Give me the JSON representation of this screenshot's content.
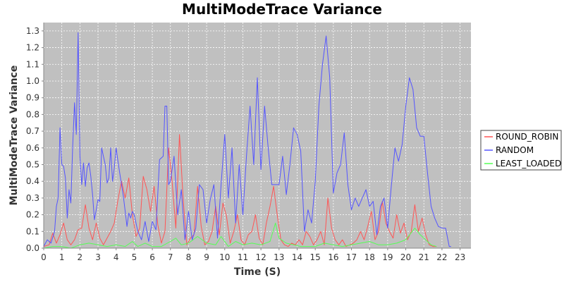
{
  "chart_data": {
    "type": "line",
    "title": "MultiModeTrace Variance",
    "xlabel": "Time (S)",
    "ylabel": "MultiModeTrace Variance",
    "xlim": [
      0,
      23.6
    ],
    "ylim": [
      0,
      1.35
    ],
    "x_ticks": [
      "0",
      "1",
      "2",
      "3",
      "4",
      "5",
      "6",
      "7",
      "8",
      "9",
      "10",
      "11",
      "12",
      "13",
      "14",
      "15",
      "16",
      "17",
      "18",
      "19",
      "20",
      "21",
      "22",
      "23"
    ],
    "y_ticks": [
      "0.0",
      "0.1",
      "0.2",
      "0.3",
      "0.4",
      "0.5",
      "0.6",
      "0.7",
      "0.8",
      "0.9",
      "1.0",
      "1.1",
      "1.2",
      "1.3"
    ],
    "grid": true,
    "legend_position": "right",
    "plot_background": "#c0c0c0",
    "series": [
      {
        "name": "ROUND_ROBIN",
        "color": "#ff5555",
        "points": [
          [
            0,
            0.01
          ],
          [
            0.3,
            0.02
          ],
          [
            0.5,
            0.09
          ],
          [
            0.7,
            0.03
          ],
          [
            0.9,
            0.08
          ],
          [
            1.1,
            0.15
          ],
          [
            1.3,
            0.05
          ],
          [
            1.5,
            0.02
          ],
          [
            1.7,
            0.05
          ],
          [
            1.9,
            0.11
          ],
          [
            2.1,
            0.12
          ],
          [
            2.3,
            0.26
          ],
          [
            2.5,
            0.12
          ],
          [
            2.7,
            0.05
          ],
          [
            2.9,
            0.15
          ],
          [
            3.1,
            0.06
          ],
          [
            3.3,
            0.02
          ],
          [
            3.5,
            0.06
          ],
          [
            3.7,
            0.1
          ],
          [
            3.9,
            0.15
          ],
          [
            4.1,
            0.29
          ],
          [
            4.3,
            0.4
          ],
          [
            4.5,
            0.3
          ],
          [
            4.7,
            0.42
          ],
          [
            4.9,
            0.2
          ],
          [
            5.1,
            0.07
          ],
          [
            5.3,
            0.12
          ],
          [
            5.5,
            0.43
          ],
          [
            5.7,
            0.35
          ],
          [
            5.9,
            0.22
          ],
          [
            6.1,
            0.37
          ],
          [
            6.3,
            0.14
          ],
          [
            6.5,
            0.03
          ],
          [
            6.7,
            0.1
          ],
          [
            6.9,
            0.6
          ],
          [
            7.1,
            0.39
          ],
          [
            7.3,
            0.12
          ],
          [
            7.5,
            0.68
          ],
          [
            7.7,
            0.3
          ],
          [
            7.9,
            0.02
          ],
          [
            8.1,
            0.06
          ],
          [
            8.3,
            0.08
          ],
          [
            8.5,
            0.37
          ],
          [
            8.7,
            0.13
          ],
          [
            8.9,
            0.02
          ],
          [
            9.1,
            0.04
          ],
          [
            9.3,
            0.1
          ],
          [
            9.5,
            0.25
          ],
          [
            9.7,
            0.08
          ],
          [
            9.9,
            0.27
          ],
          [
            10.1,
            0.19
          ],
          [
            10.3,
            0.03
          ],
          [
            10.5,
            0.1
          ],
          [
            10.7,
            0.2
          ],
          [
            10.9,
            0.05
          ],
          [
            11.1,
            0.02
          ],
          [
            11.3,
            0.08
          ],
          [
            11.5,
            0.1
          ],
          [
            11.7,
            0.2
          ],
          [
            11.9,
            0.06
          ],
          [
            12.1,
            0.02
          ],
          [
            12.3,
            0.15
          ],
          [
            12.5,
            0.25
          ],
          [
            12.7,
            0.37
          ],
          [
            12.9,
            0.2
          ],
          [
            13.1,
            0.05
          ],
          [
            13.3,
            0.02
          ],
          [
            13.5,
            0.01
          ],
          [
            13.7,
            0.03
          ],
          [
            13.9,
            0.02
          ],
          [
            14.1,
            0.05
          ],
          [
            14.3,
            0.02
          ],
          [
            14.5,
            0.1
          ],
          [
            14.7,
            0.07
          ],
          [
            14.9,
            0.02
          ],
          [
            15.1,
            0.05
          ],
          [
            15.3,
            0.1
          ],
          [
            15.5,
            0.02
          ],
          [
            15.7,
            0.3
          ],
          [
            15.9,
            0.12
          ],
          [
            16.1,
            0.05
          ],
          [
            16.3,
            0.02
          ],
          [
            16.5,
            0.05
          ],
          [
            16.7,
            0.01
          ],
          [
            16.9,
            0.02
          ],
          [
            17.1,
            0.03
          ],
          [
            17.3,
            0.05
          ],
          [
            17.5,
            0.1
          ],
          [
            17.7,
            0.05
          ],
          [
            17.9,
            0.13
          ],
          [
            18.1,
            0.22
          ],
          [
            18.3,
            0.05
          ],
          [
            18.5,
            0.1
          ],
          [
            18.7,
            0.28
          ],
          [
            18.9,
            0.15
          ],
          [
            19.1,
            0.1
          ],
          [
            19.3,
            0.06
          ],
          [
            19.5,
            0.2
          ],
          [
            19.7,
            0.09
          ],
          [
            19.9,
            0.15
          ],
          [
            20.1,
            0.05
          ],
          [
            20.3,
            0.1
          ],
          [
            20.5,
            0.26
          ],
          [
            20.7,
            0.1
          ],
          [
            20.9,
            0.18
          ],
          [
            21.1,
            0.08
          ],
          [
            21.3,
            0.02
          ],
          [
            21.5,
            0.01
          ],
          [
            21.7,
            0.01
          ]
        ]
      },
      {
        "name": "RANDOM",
        "color": "#5555ff",
        "points": [
          [
            0,
            0.01
          ],
          [
            0.2,
            0.05
          ],
          [
            0.4,
            0.03
          ],
          [
            0.6,
            0.1
          ],
          [
            0.7,
            0.25
          ],
          [
            0.8,
            0.3
          ],
          [
            0.9,
            0.72
          ],
          [
            1.0,
            0.5
          ],
          [
            1.1,
            0.49
          ],
          [
            1.2,
            0.42
          ],
          [
            1.3,
            0.18
          ],
          [
            1.4,
            0.35
          ],
          [
            1.5,
            0.27
          ],
          [
            1.6,
            0.61
          ],
          [
            1.7,
            0.87
          ],
          [
            1.8,
            0.68
          ],
          [
            1.9,
            1.29
          ],
          [
            2.0,
            0.55
          ],
          [
            2.1,
            0.38
          ],
          [
            2.2,
            0.51
          ],
          [
            2.3,
            0.37
          ],
          [
            2.4,
            0.48
          ],
          [
            2.5,
            0.51
          ],
          [
            2.6,
            0.43
          ],
          [
            2.7,
            0.32
          ],
          [
            2.8,
            0.17
          ],
          [
            2.9,
            0.23
          ],
          [
            3.0,
            0.29
          ],
          [
            3.1,
            0.28
          ],
          [
            3.2,
            0.6
          ],
          [
            3.3,
            0.55
          ],
          [
            3.4,
            0.5
          ],
          [
            3.5,
            0.39
          ],
          [
            3.6,
            0.42
          ],
          [
            3.7,
            0.6
          ],
          [
            3.8,
            0.4
          ],
          [
            3.9,
            0.48
          ],
          [
            4.0,
            0.6
          ],
          [
            4.1,
            0.52
          ],
          [
            4.2,
            0.45
          ],
          [
            4.3,
            0.38
          ],
          [
            4.4,
            0.31
          ],
          [
            4.5,
            0.22
          ],
          [
            4.6,
            0.13
          ],
          [
            4.7,
            0.21
          ],
          [
            4.8,
            0.18
          ],
          [
            4.9,
            0.22
          ],
          [
            5.0,
            0.2
          ],
          [
            5.2,
            0.1
          ],
          [
            5.4,
            0.05
          ],
          [
            5.6,
            0.16
          ],
          [
            5.8,
            0.04
          ],
          [
            6.0,
            0.16
          ],
          [
            6.2,
            0.11
          ],
          [
            6.4,
            0.53
          ],
          [
            6.6,
            0.55
          ],
          [
            6.7,
            0.85
          ],
          [
            6.8,
            0.85
          ],
          [
            6.9,
            0.38
          ],
          [
            7.0,
            0.4
          ],
          [
            7.2,
            0.55
          ],
          [
            7.4,
            0.2
          ],
          [
            7.6,
            0.35
          ],
          [
            7.8,
            0.05
          ],
          [
            8.0,
            0.22
          ],
          [
            8.2,
            0.05
          ],
          [
            8.4,
            0.12
          ],
          [
            8.6,
            0.38
          ],
          [
            8.8,
            0.35
          ],
          [
            9.0,
            0.15
          ],
          [
            9.2,
            0.29
          ],
          [
            9.4,
            0.38
          ],
          [
            9.6,
            0.06
          ],
          [
            9.8,
            0.38
          ],
          [
            10.0,
            0.68
          ],
          [
            10.2,
            0.3
          ],
          [
            10.4,
            0.6
          ],
          [
            10.6,
            0.15
          ],
          [
            10.8,
            0.5
          ],
          [
            11.0,
            0.2
          ],
          [
            11.2,
            0.55
          ],
          [
            11.4,
            0.85
          ],
          [
            11.6,
            0.5
          ],
          [
            11.8,
            1.02
          ],
          [
            12.0,
            0.47
          ],
          [
            12.2,
            0.85
          ],
          [
            12.4,
            0.6
          ],
          [
            12.6,
            0.38
          ],
          [
            12.8,
            0.38
          ],
          [
            13.0,
            0.38
          ],
          [
            13.2,
            0.55
          ],
          [
            13.4,
            0.32
          ],
          [
            13.6,
            0.5
          ],
          [
            13.8,
            0.72
          ],
          [
            14.0,
            0.68
          ],
          [
            14.2,
            0.58
          ],
          [
            14.4,
            0.1
          ],
          [
            14.6,
            0.23
          ],
          [
            14.8,
            0.15
          ],
          [
            15.0,
            0.4
          ],
          [
            15.2,
            0.85
          ],
          [
            15.4,
            1.1
          ],
          [
            15.6,
            1.27
          ],
          [
            15.8,
            1.02
          ],
          [
            16.0,
            0.33
          ],
          [
            16.2,
            0.45
          ],
          [
            16.4,
            0.5
          ],
          [
            16.6,
            0.69
          ],
          [
            16.8,
            0.38
          ],
          [
            17.0,
            0.23
          ],
          [
            17.2,
            0.3
          ],
          [
            17.4,
            0.25
          ],
          [
            17.6,
            0.3
          ],
          [
            17.8,
            0.35
          ],
          [
            18.0,
            0.25
          ],
          [
            18.2,
            0.28
          ],
          [
            18.4,
            0.08
          ],
          [
            18.6,
            0.25
          ],
          [
            18.8,
            0.3
          ],
          [
            19.0,
            0.12
          ],
          [
            19.2,
            0.37
          ],
          [
            19.4,
            0.6
          ],
          [
            19.6,
            0.52
          ],
          [
            19.8,
            0.62
          ],
          [
            20.0,
            0.85
          ],
          [
            20.2,
            1.02
          ],
          [
            20.4,
            0.95
          ],
          [
            20.6,
            0.72
          ],
          [
            20.8,
            0.67
          ],
          [
            21.0,
            0.67
          ],
          [
            21.2,
            0.45
          ],
          [
            21.4,
            0.25
          ],
          [
            21.6,
            0.18
          ],
          [
            21.8,
            0.13
          ],
          [
            22.0,
            0.12
          ],
          [
            22.2,
            0.12
          ],
          [
            22.4,
            0.01
          ],
          [
            22.5,
            0.01
          ]
        ]
      },
      {
        "name": "LEAST_LOADED",
        "color": "#55ff55",
        "points": [
          [
            0,
            0.0
          ],
          [
            0.5,
            0.01
          ],
          [
            1.0,
            0.01
          ],
          [
            1.5,
            0.0
          ],
          [
            2.0,
            0.02
          ],
          [
            2.5,
            0.03
          ],
          [
            3.0,
            0.02
          ],
          [
            3.5,
            0.01
          ],
          [
            4.0,
            0.02
          ],
          [
            4.5,
            0.01
          ],
          [
            4.9,
            0.04
          ],
          [
            5.2,
            0.01
          ],
          [
            5.6,
            0.03
          ],
          [
            6.0,
            0.01
          ],
          [
            6.5,
            0.01
          ],
          [
            7.0,
            0.04
          ],
          [
            7.3,
            0.06
          ],
          [
            7.6,
            0.02
          ],
          [
            8.0,
            0.03
          ],
          [
            8.5,
            0.07
          ],
          [
            9.0,
            0.03
          ],
          [
            9.5,
            0.02
          ],
          [
            9.8,
            0.07
          ],
          [
            10.2,
            0.01
          ],
          [
            10.6,
            0.04
          ],
          [
            11.0,
            0.02
          ],
          [
            11.5,
            0.03
          ],
          [
            12.0,
            0.02
          ],
          [
            12.5,
            0.04
          ],
          [
            12.8,
            0.15
          ],
          [
            13.0,
            0.06
          ],
          [
            13.4,
            0.03
          ],
          [
            13.8,
            0.02
          ],
          [
            14.2,
            0.01
          ],
          [
            14.6,
            0.01
          ],
          [
            15.0,
            0.01
          ],
          [
            15.5,
            0.03
          ],
          [
            16.0,
            0.02
          ],
          [
            16.5,
            0.01
          ],
          [
            17.0,
            0.02
          ],
          [
            17.5,
            0.03
          ],
          [
            18.0,
            0.04
          ],
          [
            18.5,
            0.02
          ],
          [
            19.0,
            0.02
          ],
          [
            19.5,
            0.03
          ],
          [
            20.0,
            0.05
          ],
          [
            20.5,
            0.12
          ],
          [
            20.8,
            0.08
          ],
          [
            21.1,
            0.05
          ],
          [
            21.4,
            0.02
          ],
          [
            21.7,
            0.01
          ]
        ]
      }
    ]
  }
}
